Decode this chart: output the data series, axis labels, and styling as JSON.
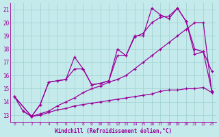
{
  "xlabel": "Windchill (Refroidissement éolien,°C)",
  "xlim": [
    -0.5,
    23.5
  ],
  "ylim": [
    12.5,
    21.5
  ],
  "xticks": [
    0,
    1,
    2,
    3,
    4,
    5,
    6,
    7,
    8,
    9,
    10,
    11,
    12,
    13,
    14,
    15,
    16,
    17,
    18,
    19,
    20,
    21,
    22,
    23
  ],
  "yticks": [
    13,
    14,
    15,
    16,
    17,
    18,
    19,
    20,
    21
  ],
  "bg_color": "#c5eaec",
  "line_color": "#990099",
  "grid_color": "#9ecfcf",
  "line1_x": [
    0,
    1,
    2,
    3,
    4,
    5,
    6,
    7,
    8,
    9,
    10,
    11,
    12,
    13,
    14,
    15,
    16,
    17,
    18,
    19,
    20,
    21,
    22,
    23
  ],
  "line1_y": [
    14.4,
    13.3,
    12.9,
    13.8,
    15.5,
    15.6,
    15.7,
    17.4,
    16.5,
    15.3,
    15.4,
    15.6,
    18.0,
    17.5,
    19.0,
    19.0,
    21.1,
    20.6,
    20.3,
    21.1,
    20.1,
    18.0,
    17.8,
    16.3
  ],
  "line2_x": [
    0,
    2,
    3,
    4,
    5,
    6,
    7,
    8,
    9,
    10,
    11,
    12,
    13,
    14,
    15,
    16,
    17,
    18,
    19,
    20,
    21,
    22,
    23
  ],
  "line2_y": [
    14.4,
    12.9,
    13.1,
    13.3,
    13.7,
    14.0,
    14.3,
    14.7,
    15.0,
    15.2,
    15.5,
    15.7,
    16.0,
    16.5,
    17.0,
    17.5,
    18.0,
    18.5,
    19.0,
    19.5,
    20.0,
    20.0,
    14.7
  ],
  "line3_x": [
    0,
    2,
    3,
    4,
    5,
    6,
    7,
    8,
    9,
    10,
    11,
    12,
    13,
    14,
    15,
    16,
    17,
    18,
    19,
    20,
    21,
    22,
    23
  ],
  "line3_y": [
    14.4,
    12.9,
    13.0,
    13.2,
    13.4,
    13.5,
    13.7,
    13.8,
    13.9,
    14.0,
    14.1,
    14.2,
    14.3,
    14.4,
    14.5,
    14.6,
    14.8,
    14.9,
    14.9,
    15.0,
    15.0,
    15.1,
    14.7
  ],
  "line4_x": [
    1,
    2,
    3,
    4,
    5,
    6,
    7,
    8,
    9,
    10,
    11,
    12,
    13,
    14,
    15,
    16,
    17,
    18,
    19,
    20,
    21,
    22,
    23
  ],
  "line4_y": [
    13.3,
    12.9,
    13.8,
    15.5,
    15.6,
    15.7,
    16.5,
    16.5,
    15.3,
    15.4,
    15.6,
    17.5,
    17.5,
    18.9,
    19.2,
    20.0,
    20.4,
    20.5,
    21.1,
    20.1,
    17.6,
    17.8,
    14.8
  ]
}
